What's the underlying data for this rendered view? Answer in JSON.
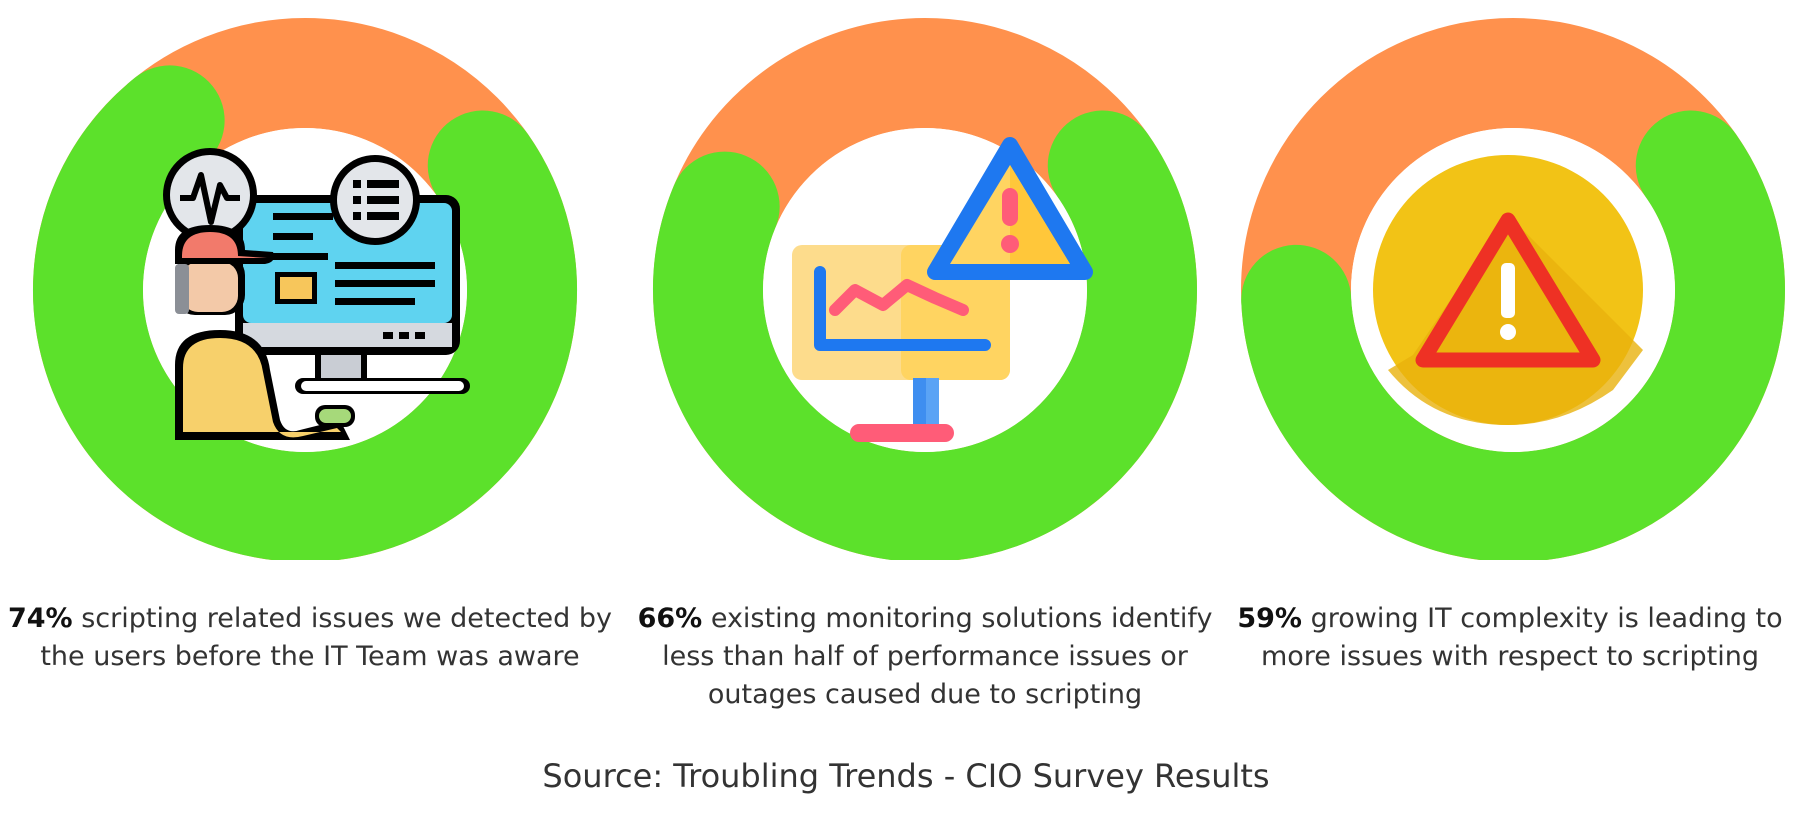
{
  "colors": {
    "ring_track": "#FF914D",
    "ring_fill": "#5CE12B",
    "inner": "#FFFFFF"
  },
  "chart_data": [
    {
      "type": "donut",
      "value": 74,
      "percent_label": "74%",
      "text": "scripting related issues we detected by the users before the IT Team was aware",
      "icon": "it-support-monitor-icon"
    },
    {
      "type": "donut",
      "value": 66,
      "percent_label": "66%",
      "text": "existing monitoring solutions identify less than half of performance issues or outages caused due to scripting",
      "icon": "warning-chart-monitor-icon"
    },
    {
      "type": "donut",
      "value": 59,
      "percent_label": "59%",
      "text": "growing IT complexity  is leading to more issues with respect to scripting",
      "icon": "warning-triangle-icon"
    }
  ],
  "source": "Source: Troubling Trends - CIO Survey Results"
}
